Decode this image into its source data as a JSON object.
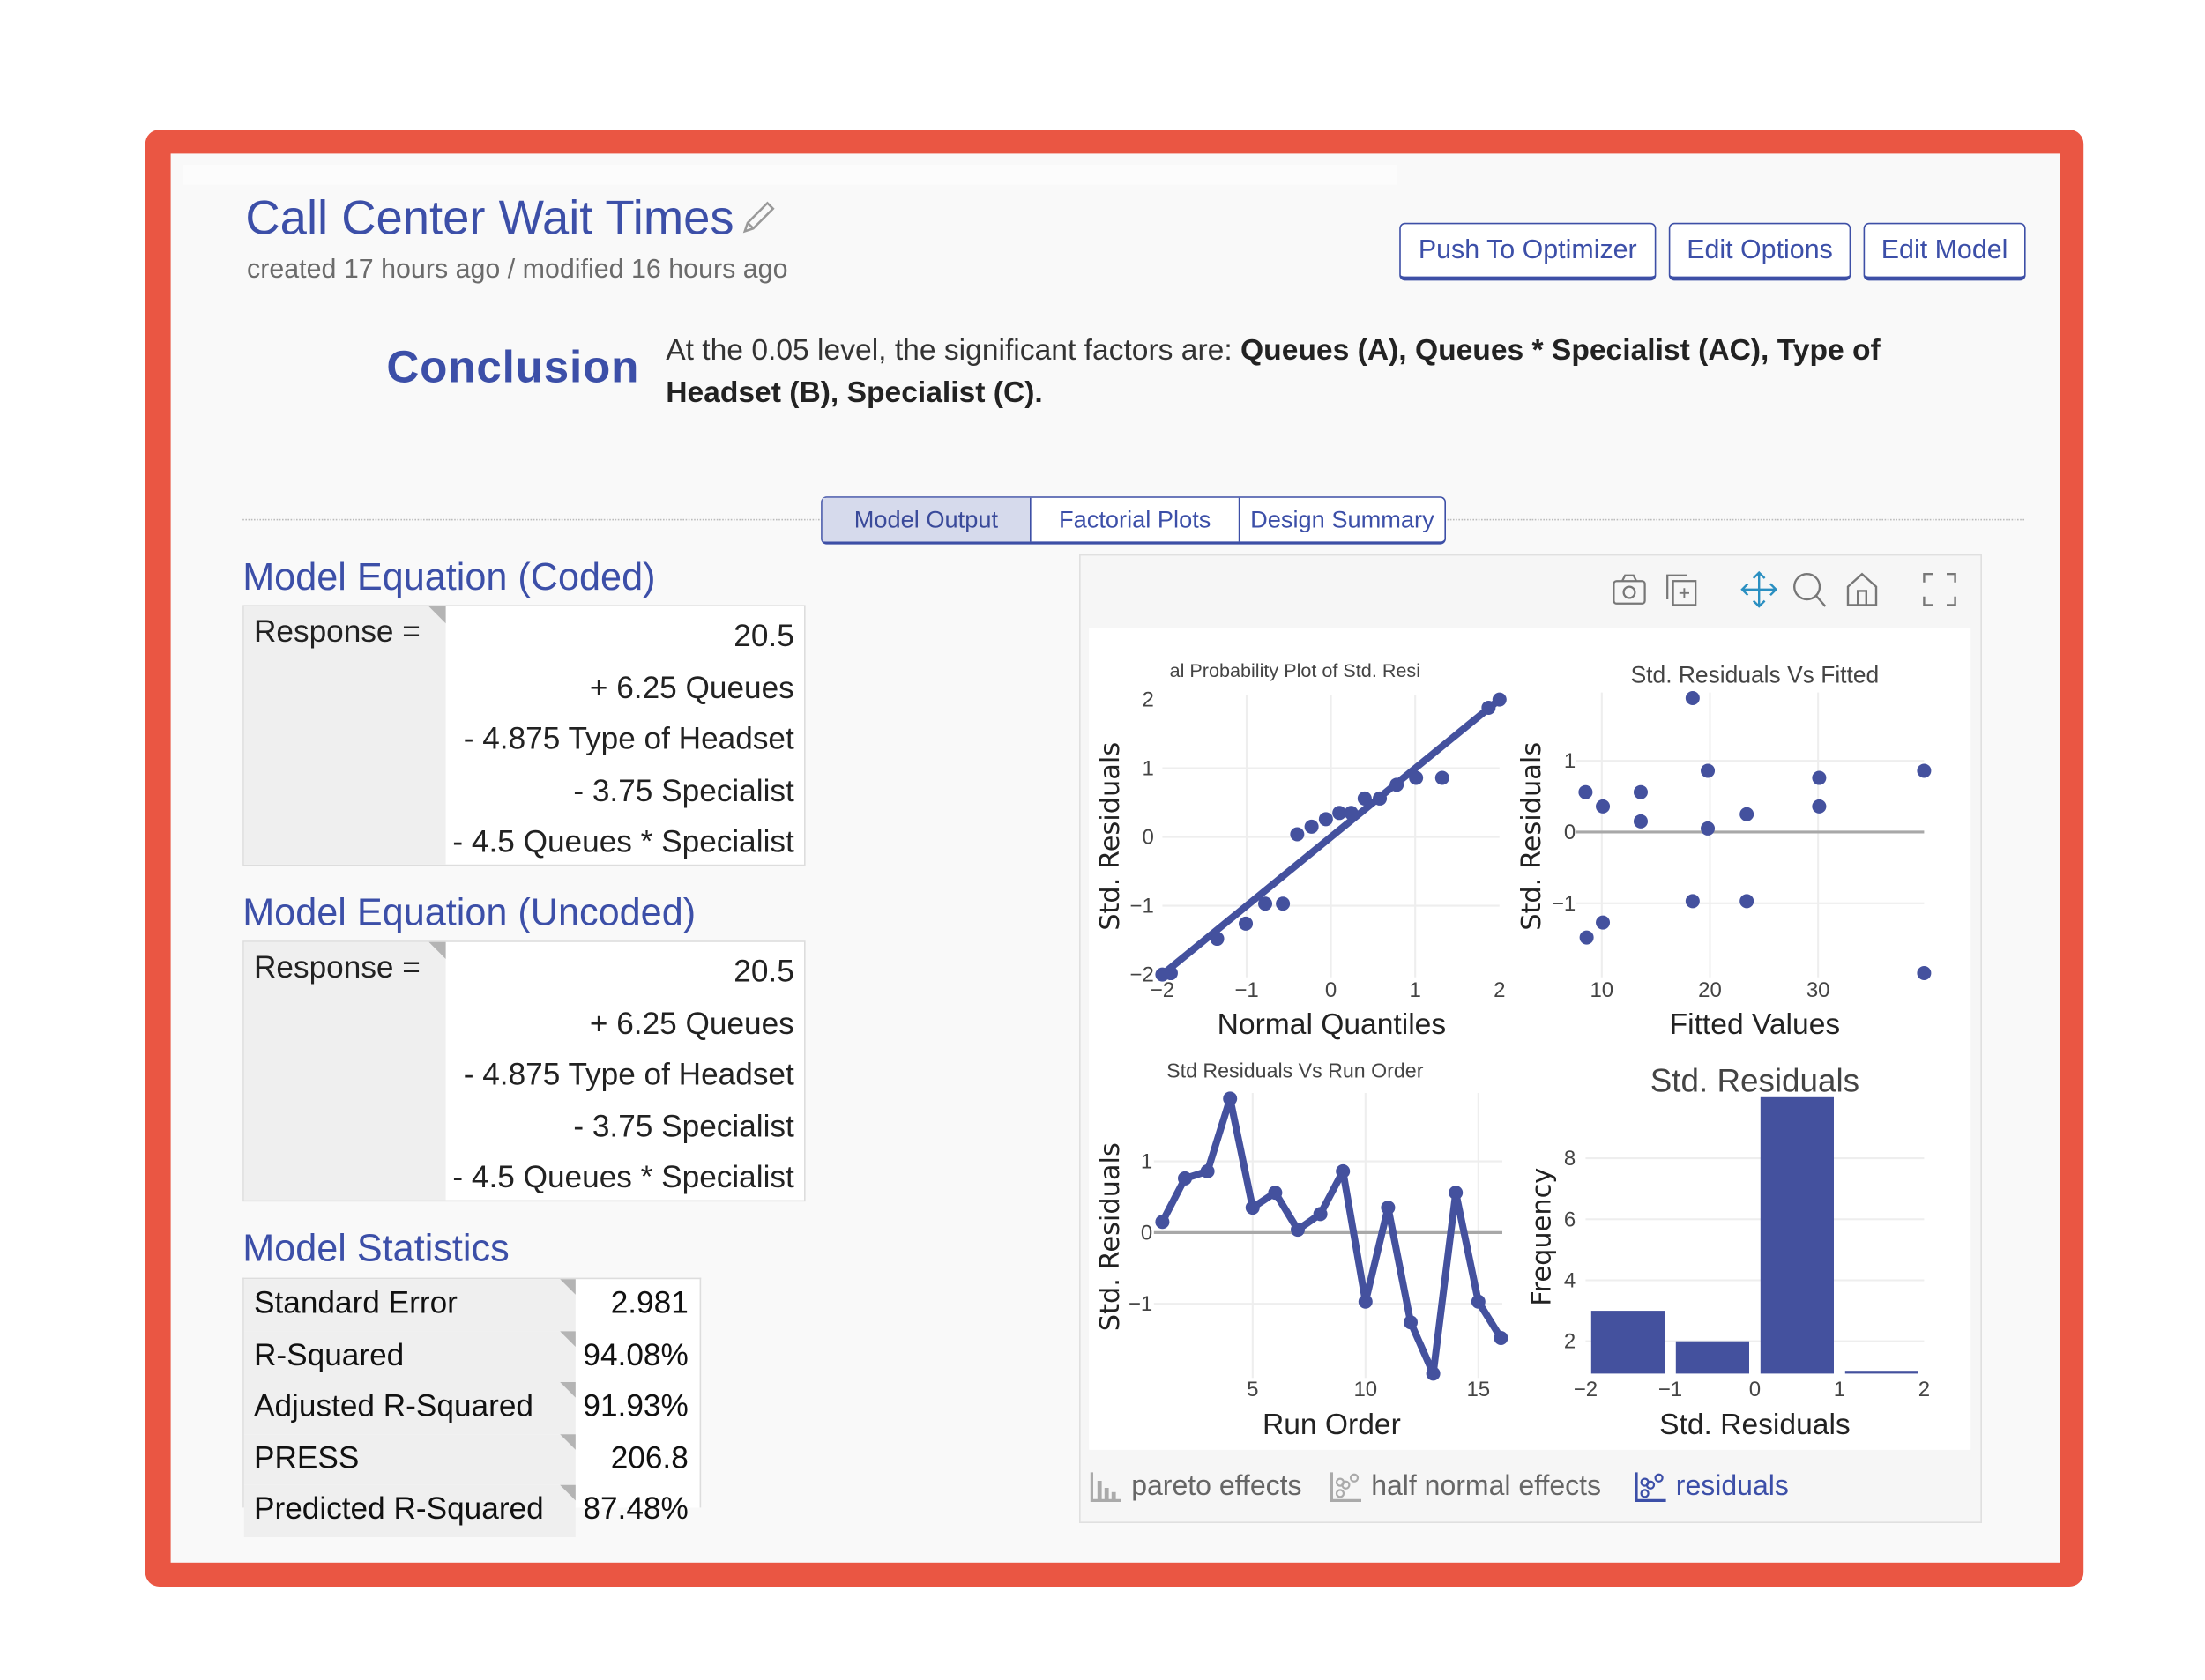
{
  "header": {
    "title": "Call Center Wait Times",
    "subtitle": "created 17 hours ago / modified 16 hours ago",
    "buttons": [
      "Push To Optimizer",
      "Edit Options",
      "Edit Model"
    ]
  },
  "conclusion": {
    "label": "Conclusion",
    "text_prefix": "At the 0.05 level, the significant factors are:",
    "factors": "Queues (A), Queues * Specialist (AC), Type of Headset (B), Specialist (C)."
  },
  "tabs": [
    {
      "label": "Model Output",
      "active": true
    },
    {
      "label": "Factorial Plots",
      "active": false
    },
    {
      "label": "Design Summary",
      "active": false
    }
  ],
  "coded": {
    "title": "Model Equation (Coded)",
    "lhs": "Response =",
    "terms": [
      "20.5",
      "+ 6.25 Queues",
      "- 4.875 Type of Headset",
      "- 3.75 Specialist",
      "- 4.5 Queues * Specialist"
    ]
  },
  "uncoded": {
    "title": "Model Equation (Uncoded)",
    "lhs": "Response =",
    "terms": [
      "20.5",
      "+ 6.25 Queues",
      "- 4.875 Type of Headset",
      "- 3.75 Specialist",
      "- 4.5 Queues * Specialist"
    ]
  },
  "stats": {
    "title": "Model Statistics",
    "rows": [
      {
        "label": "Standard Error",
        "value": "2.981"
      },
      {
        "label": "R-Squared",
        "value": "94.08%"
      },
      {
        "label": "Adjusted R-Squared",
        "value": "91.93%"
      },
      {
        "label": "PRESS",
        "value": "206.8"
      },
      {
        "label": "Predicted R-Squared",
        "value": "87.48%"
      }
    ]
  },
  "plot_toolbar": [
    "camera-icon",
    "copy-icon",
    "pan-icon",
    "zoom-icon",
    "home-icon",
    "fullscreen-icon"
  ],
  "plot_tabs": [
    {
      "label": "pareto effects",
      "icon": "bar-chart-icon",
      "active": false
    },
    {
      "label": "half normal effects",
      "icon": "scatter-icon",
      "active": false
    },
    {
      "label": "residuals",
      "icon": "scatter-icon",
      "active": true
    }
  ],
  "colors": {
    "accent": "#3c4fa8",
    "marker": "#44519e",
    "frame": "#ea5643"
  },
  "chart_data": [
    {
      "type": "scatter",
      "title": "al Probability Plot of Std. Resi",
      "xlabel": "Normal Quantiles",
      "ylabel": "Std. Residuals",
      "xlim": [
        -2,
        2
      ],
      "ylim": [
        -2,
        2
      ],
      "xticks": [
        -2,
        -1,
        0,
        1,
        2
      ],
      "yticks": [
        -2,
        -1,
        0,
        1,
        2
      ],
      "x": [
        -1.9,
        -1.35,
        -1.01,
        -0.78,
        -0.57,
        -0.4,
        -0.23,
        -0.06,
        0.1,
        0.24,
        0.4,
        0.58,
        0.78,
        1.01,
        1.32,
        1.87
      ],
      "y": [
        -1.98,
        -1.48,
        -1.26,
        -0.97,
        -0.97,
        0.04,
        0.15,
        0.26,
        0.35,
        0.35,
        0.56,
        0.56,
        0.76,
        0.86,
        0.86,
        1.88
      ],
      "reference_line": {
        "x": [
          -2,
          2
        ],
        "y": [
          -2,
          2
        ]
      },
      "grid": true
    },
    {
      "type": "scatter",
      "title": "Std. Residuals Vs Fitted",
      "xlabel": "Fitted Values",
      "ylabel": "Std. Residuals",
      "xlim": [
        8.5,
        39.8
      ],
      "ylim": [
        -2,
        1.9
      ],
      "xticks": [
        10,
        20,
        30
      ],
      "yticks": [
        -1,
        0,
        1
      ],
      "x": [
        8.5,
        10.1,
        13.6,
        13.6,
        18.4,
        19.8,
        19.8,
        23.4,
        30.1,
        30.1,
        39.8,
        18.4,
        23.4,
        10.1,
        8.6,
        39.8
      ],
      "y": [
        0.56,
        0.36,
        0.56,
        0.15,
        1.88,
        0.86,
        0.05,
        0.25,
        0.76,
        0.36,
        0.86,
        -0.97,
        -0.97,
        -1.27,
        -1.48,
        -1.98
      ],
      "grid": true
    },
    {
      "type": "line",
      "title": "Std Residuals Vs Run Order",
      "xlabel": "Run Order",
      "ylabel": "Std. Residuals",
      "xlim": [
        1,
        16
      ],
      "ylim": [
        -2,
        1.9
      ],
      "xticks": [
        5,
        10,
        15
      ],
      "yticks": [
        -1,
        0,
        1
      ],
      "x": [
        1,
        2,
        3,
        4,
        5,
        6,
        7,
        8,
        9,
        10,
        11,
        12,
        13,
        14,
        15,
        16
      ],
      "y": [
        0.15,
        0.76,
        0.86,
        1.88,
        0.35,
        0.56,
        0.04,
        0.26,
        0.86,
        -0.97,
        0.35,
        -1.26,
        -1.98,
        0.56,
        -0.97,
        -1.48
      ],
      "grid": true
    },
    {
      "type": "bar",
      "title": "Std. Residuals",
      "xlabel": "Std. Residuals",
      "ylabel": "Frequency",
      "xlim": [
        -2,
        2
      ],
      "ylim": [
        0.94,
        10
      ],
      "xticks": [
        -2,
        -1,
        0,
        1,
        2
      ],
      "yticks": [
        2,
        4,
        6,
        8
      ],
      "bins": [
        [
          -2,
          -1
        ],
        [
          -1,
          0
        ],
        [
          0,
          1
        ],
        [
          1,
          2
        ]
      ],
      "values": [
        3,
        2,
        10,
        1
      ],
      "grid": true
    }
  ]
}
